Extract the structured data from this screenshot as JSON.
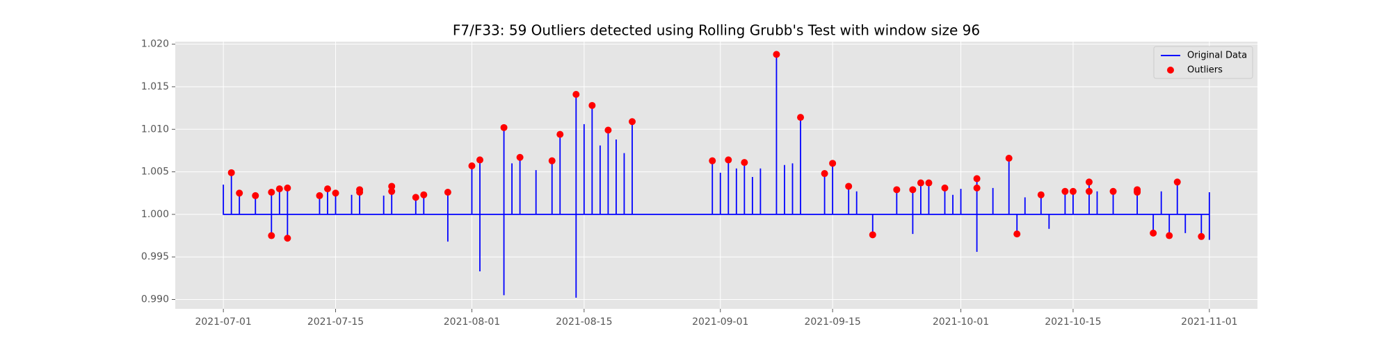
{
  "chart_data": {
    "type": "line",
    "title": "F7/F33: 59 Outliers detected using Rolling Grubb's Test with window size 96",
    "xlim": [
      "2021-06-25",
      "2021-11-07"
    ],
    "xticks": [
      "2021-07-01",
      "2021-07-15",
      "2021-08-01",
      "2021-08-15",
      "2021-09-01",
      "2021-09-15",
      "2021-10-01",
      "2021-10-15",
      "2021-11-01"
    ],
    "ylim": [
      0.9889,
      1.0203
    ],
    "yticks": [
      {
        "value": 0.99,
        "label": "0.990"
      },
      {
        "value": 0.995,
        "label": "0.995"
      },
      {
        "value": 1.0,
        "label": "1.000"
      },
      {
        "value": 1.005,
        "label": "1.005"
      },
      {
        "value": 1.01,
        "label": "1.010"
      },
      {
        "value": 1.015,
        "label": "1.015"
      },
      {
        "value": 1.02,
        "label": "1.020"
      }
    ],
    "grid": true,
    "legend": "upper right",
    "series": [
      {
        "name": "Original Data",
        "type": "line",
        "color": "#0000ff",
        "x": [
          "2021-07-01",
          "2021-07-01",
          "2021-07-01",
          "2021-07-02",
          "2021-07-02",
          "2021-07-02",
          "2021-07-03",
          "2021-07-03",
          "2021-07-03",
          "2021-07-05",
          "2021-07-05",
          "2021-07-05",
          "2021-07-07",
          "2021-07-07",
          "2021-07-07",
          "2021-07-07",
          "2021-07-07",
          "2021-07-07",
          "2021-07-08",
          "2021-07-08",
          "2021-07-08",
          "2021-07-09",
          "2021-07-09",
          "2021-07-09",
          "2021-07-09",
          "2021-07-09",
          "2021-07-09",
          "2021-07-13",
          "2021-07-13",
          "2021-07-13",
          "2021-07-14",
          "2021-07-14",
          "2021-07-14",
          "2021-07-15",
          "2021-07-15",
          "2021-07-15",
          "2021-07-17",
          "2021-07-17",
          "2021-07-17",
          "2021-07-18",
          "2021-07-18",
          "2021-07-18",
          "2021-07-21",
          "2021-07-21",
          "2021-07-21",
          "2021-07-22",
          "2021-07-22",
          "2021-07-22",
          "2021-07-25",
          "2021-07-25",
          "2021-07-25",
          "2021-07-26",
          "2021-07-26",
          "2021-07-26",
          "2021-07-29",
          "2021-07-29",
          "2021-07-29",
          "2021-07-29",
          "2021-07-29",
          "2021-07-29",
          "2021-08-01",
          "2021-08-01",
          "2021-08-01",
          "2021-08-02",
          "2021-08-02",
          "2021-08-02",
          "2021-08-02",
          "2021-08-02",
          "2021-08-02",
          "2021-08-05",
          "2021-08-05",
          "2021-08-05",
          "2021-08-05",
          "2021-08-05",
          "2021-08-05",
          "2021-08-06",
          "2021-08-06",
          "2021-08-06",
          "2021-08-07",
          "2021-08-07",
          "2021-08-07",
          "2021-08-09",
          "2021-08-09",
          "2021-08-09",
          "2021-08-11",
          "2021-08-11",
          "2021-08-11",
          "2021-08-12",
          "2021-08-12",
          "2021-08-12",
          "2021-08-14",
          "2021-08-14",
          "2021-08-14",
          "2021-08-14",
          "2021-08-14",
          "2021-08-14",
          "2021-08-15",
          "2021-08-15",
          "2021-08-15",
          "2021-08-16",
          "2021-08-16",
          "2021-08-16",
          "2021-08-17",
          "2021-08-17",
          "2021-08-17",
          "2021-08-18",
          "2021-08-18",
          "2021-08-18",
          "2021-08-19",
          "2021-08-19",
          "2021-08-19",
          "2021-08-20",
          "2021-08-20",
          "2021-08-20",
          "2021-08-21",
          "2021-08-21",
          "2021-08-21",
          "2021-08-31",
          "2021-08-31",
          "2021-08-31",
          "2021-09-01",
          "2021-09-01",
          "2021-09-01",
          "2021-09-02",
          "2021-09-02",
          "2021-09-02",
          "2021-09-03",
          "2021-09-03",
          "2021-09-03",
          "2021-09-04",
          "2021-09-04",
          "2021-09-04",
          "2021-09-05",
          "2021-09-05",
          "2021-09-05",
          "2021-09-06",
          "2021-09-06",
          "2021-09-06",
          "2021-09-08",
          "2021-09-08",
          "2021-09-08",
          "2021-09-09",
          "2021-09-09",
          "2021-09-09",
          "2021-09-10",
          "2021-09-10",
          "2021-09-10",
          "2021-09-11",
          "2021-09-11",
          "2021-09-11",
          "2021-09-14",
          "2021-09-14",
          "2021-09-14",
          "2021-09-15",
          "2021-09-15",
          "2021-09-15",
          "2021-09-17",
          "2021-09-17",
          "2021-09-17",
          "2021-09-18",
          "2021-09-18",
          "2021-09-18",
          "2021-09-20",
          "2021-09-20",
          "2021-09-20",
          "2021-09-23",
          "2021-09-23",
          "2021-09-23",
          "2021-09-25",
          "2021-09-25",
          "2021-09-25",
          "2021-09-25",
          "2021-09-25",
          "2021-09-25",
          "2021-09-26",
          "2021-09-26",
          "2021-09-26",
          "2021-09-27",
          "2021-09-27",
          "2021-09-27",
          "2021-09-29",
          "2021-09-29",
          "2021-09-29",
          "2021-09-30",
          "2021-09-30",
          "2021-09-30",
          "2021-10-01",
          "2021-10-01",
          "2021-10-01",
          "2021-10-03",
          "2021-10-03",
          "2021-10-03",
          "2021-10-03",
          "2021-10-03",
          "2021-10-03",
          "2021-10-05",
          "2021-10-05",
          "2021-10-05",
          "2021-10-07",
          "2021-10-07",
          "2021-10-07",
          "2021-10-08",
          "2021-10-08",
          "2021-10-08",
          "2021-10-09",
          "2021-10-09",
          "2021-10-09",
          "2021-10-11",
          "2021-10-11",
          "2021-10-11",
          "2021-10-12",
          "2021-10-12",
          "2021-10-12",
          "2021-10-14",
          "2021-10-14",
          "2021-10-14",
          "2021-10-15",
          "2021-10-15",
          "2021-10-15",
          "2021-10-17",
          "2021-10-17",
          "2021-10-17",
          "2021-10-18",
          "2021-10-18",
          "2021-10-18",
          "2021-10-20",
          "2021-10-20",
          "2021-10-20",
          "2021-10-23",
          "2021-10-23",
          "2021-10-23",
          "2021-10-25",
          "2021-10-25",
          "2021-10-25",
          "2021-10-26",
          "2021-10-26",
          "2021-10-26",
          "2021-10-27",
          "2021-10-27",
          "2021-10-27",
          "2021-10-28",
          "2021-10-28",
          "2021-10-28",
          "2021-10-29",
          "2021-10-29",
          "2021-10-29",
          "2021-10-31",
          "2021-10-31",
          "2021-10-31",
          "2021-11-01",
          "2021-11-01",
          "2021-11-01",
          "2021-11-01",
          "2021-11-01",
          "2021-11-01"
        ],
        "values": [
          1,
          1.0035,
          1,
          1,
          1.0049,
          1,
          1,
          1.0025,
          1,
          1,
          1.0022,
          1,
          1,
          0.9975,
          1,
          1,
          1.0026,
          1,
          1,
          1.003,
          1,
          1,
          0.9972,
          1,
          1,
          1.0031,
          1,
          1,
          1.0022,
          1,
          1,
          1.003,
          1,
          1,
          1.0025,
          1,
          1,
          1.0023,
          1,
          1,
          1.0029,
          1,
          1,
          1.0022,
          1,
          1,
          1.0033,
          1,
          1,
          1.002,
          1,
          1,
          1.0023,
          1,
          1,
          0.9968,
          1,
          1,
          1.0026,
          1,
          1,
          1.0057,
          1,
          1,
          0.9933,
          1,
          1,
          1.0064,
          1,
          1,
          0.9905,
          1,
          1,
          1.0102,
          1,
          1,
          1.006,
          1,
          1,
          1.0067,
          1,
          1,
          1.0052,
          1,
          1,
          1.0063,
          1,
          1,
          1.0094,
          1,
          1,
          0.9902,
          1,
          1,
          1.0141,
          1,
          1,
          1.0106,
          1,
          1,
          1.0128,
          1,
          1,
          1.0081,
          1,
          1,
          1.0099,
          1,
          1,
          1.0088,
          1,
          1,
          1.0072,
          1,
          1,
          1.0109,
          1,
          1,
          1.0063,
          1,
          1,
          1.0049,
          1,
          1,
          1.0064,
          1,
          1,
          1.0054,
          1,
          1,
          1.0061,
          1,
          1,
          1.0044,
          1,
          1,
          1.0054,
          1,
          1,
          1.0188,
          1,
          1,
          1.0058,
          1,
          1,
          1.006,
          1,
          1,
          1.0114,
          1,
          1,
          1.0048,
          1,
          1,
          1.006,
          1,
          1,
          1.0033,
          1,
          1,
          1.0027,
          1,
          1,
          0.9976,
          1,
          1,
          1.0029,
          1,
          1,
          0.9977,
          1,
          1,
          1.0029,
          1,
          1,
          1.0037,
          1,
          1,
          1.0037,
          1,
          1,
          1.0031,
          1,
          1,
          1.0023,
          1,
          1,
          1.003,
          1,
          1,
          0.9956,
          1,
          1,
          1.0042,
          1,
          1,
          1.0031,
          1,
          1,
          1.0066,
          1,
          1,
          0.9977,
          1,
          1,
          1.002,
          1,
          1,
          1.0023,
          1,
          1,
          0.9983,
          1,
          1,
          1.0027,
          1,
          1,
          1.0027,
          1,
          1,
          1.0038,
          1,
          1,
          1.0027,
          1,
          1,
          1.0027,
          1,
          1,
          1.0029,
          1,
          1,
          0.9978,
          1,
          1,
          1.0027,
          1,
          1,
          0.9975,
          1,
          1,
          1.0038,
          1,
          1,
          0.9978,
          1,
          1,
          0.9974,
          1,
          1,
          0.997,
          1,
          1,
          1.0026,
          1
        ]
      },
      {
        "name": "Outliers",
        "type": "scatter",
        "color": "#ff0000",
        "x": [
          "2021-07-02",
          "2021-07-03",
          "2021-07-05",
          "2021-07-07",
          "2021-07-07",
          "2021-07-08",
          "2021-07-09",
          "2021-07-09",
          "2021-07-13",
          "2021-07-14",
          "2021-07-15",
          "2021-07-18",
          "2021-07-18",
          "2021-07-22",
          "2021-07-22",
          "2021-07-25",
          "2021-07-26",
          "2021-07-29",
          "2021-08-01",
          "2021-08-02",
          "2021-08-05",
          "2021-08-07",
          "2021-08-11",
          "2021-08-12",
          "2021-08-14",
          "2021-08-16",
          "2021-08-18",
          "2021-08-21",
          "2021-08-31",
          "2021-09-02",
          "2021-09-04",
          "2021-09-08",
          "2021-09-11",
          "2021-09-14",
          "2021-09-15",
          "2021-09-17",
          "2021-09-20",
          "2021-09-23",
          "2021-09-25",
          "2021-09-26",
          "2021-09-27",
          "2021-09-29",
          "2021-10-03",
          "2021-10-03",
          "2021-10-07",
          "2021-10-08",
          "2021-10-11",
          "2021-10-14",
          "2021-10-15",
          "2021-10-17",
          "2021-10-17",
          "2021-10-20",
          "2021-10-23",
          "2021-10-23",
          "2021-10-23",
          "2021-10-25",
          "2021-10-27",
          "2021-10-28",
          "2021-10-31"
        ],
        "values": [
          1.0049,
          1.0025,
          1.0022,
          1.0026,
          0.9975,
          1.003,
          1.0031,
          0.9972,
          1.0022,
          1.003,
          1.0025,
          1.0029,
          1.0026,
          1.0033,
          1.0027,
          1.002,
          1.0023,
          1.0026,
          1.0057,
          1.0064,
          1.0102,
          1.0067,
          1.0063,
          1.0094,
          1.0141,
          1.0128,
          1.0099,
          1.0109,
          1.0063,
          1.0064,
          1.0061,
          1.0188,
          1.0114,
          1.0048,
          1.006,
          1.0033,
          0.9976,
          1.0029,
          1.0029,
          1.0037,
          1.0037,
          1.0031,
          1.0031,
          1.0042,
          1.0066,
          0.9977,
          1.0023,
          1.0027,
          1.0027,
          1.0038,
          1.0027,
          1.0027,
          1.0027,
          1.0029,
          1.0026,
          0.9978,
          0.9975,
          1.0038,
          0.9974
        ]
      }
    ]
  }
}
